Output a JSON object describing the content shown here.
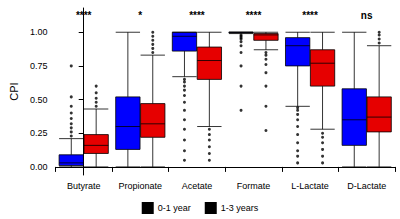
{
  "chart_data": {
    "type": "boxplot",
    "y_label": "CPI",
    "categories": [
      "Butyrate",
      "Propionate",
      "Acetate",
      "Formate",
      "L-Lactate",
      "D-Lactate"
    ],
    "annotations": [
      "****",
      "*",
      "****",
      "****",
      "****",
      "ns"
    ],
    "ylim": [
      -0.06,
      1.18
    ],
    "yticks": [
      {
        "value": 0,
        "label": "0.00"
      },
      {
        "value": 0.25,
        "label": "0.25"
      },
      {
        "value": 0.5,
        "label": "0.50"
      },
      {
        "value": 0.75,
        "label": "0.75"
      },
      {
        "value": 1,
        "label": "1.00"
      }
    ],
    "grid": false,
    "legend": "bottom",
    "series": [
      {
        "name": "0-1 year",
        "color": "#0000ff",
        "boxes": [
          [
            0,
            0.01,
            0.03,
            0.09,
            0.21
          ],
          [
            0,
            0.13,
            0.3,
            0.52,
            1.0
          ],
          [
            0.67,
            0.86,
            0.97,
            1.0,
            1.0
          ],
          [
            0.99,
            0.995,
            1.0,
            1.0,
            1.0
          ],
          [
            0.45,
            0.75,
            0.9,
            0.96,
            1.0
          ],
          [
            0,
            0.16,
            0.35,
            0.58,
            1.0
          ]
        ],
        "outliers": [
          [
            0.23,
            0.26,
            0.29,
            0.32,
            0.36,
            0.4,
            0.45,
            0.52,
            0.75
          ],
          [],
          [
            0.05,
            0.12,
            0.2,
            0.28,
            0.35,
            0.42,
            0.48,
            0.53,
            0.57,
            0.6,
            0.63,
            0.65
          ],
          [
            0.42,
            0.6,
            0.75,
            0.85,
            0.9,
            0.93,
            0.95,
            0.96,
            0.97,
            0.98
          ],
          [
            0.03,
            0.08,
            0.12,
            0.18,
            0.24,
            0.3,
            0.35,
            0.39,
            0.42,
            0.44
          ],
          []
        ]
      },
      {
        "name": "1-3 years",
        "color": "#e60000",
        "boxes": [
          [
            0,
            0.1,
            0.16,
            0.24,
            0.43
          ],
          [
            0,
            0.22,
            0.32,
            0.47,
            0.83
          ],
          [
            0.3,
            0.65,
            0.79,
            0.89,
            1.0
          ],
          [
            0.87,
            0.94,
            0.98,
            0.99,
            1.0
          ],
          [
            0.28,
            0.6,
            0.77,
            0.87,
            1.0
          ],
          [
            0,
            0.26,
            0.37,
            0.52,
            0.9
          ]
        ],
        "outliers": [
          [
            0.45,
            0.48,
            0.51,
            0.55,
            0.6
          ],
          [
            0.85,
            0.88,
            0.91,
            0.94,
            0.97,
            1.0
          ],
          [
            0.05,
            0.1,
            0.15,
            0.2,
            0.24,
            0.28
          ],
          [
            0.27,
            0.45,
            0.6,
            0.7,
            0.76,
            0.8,
            0.83,
            0.85
          ],
          [
            0.03,
            0.08,
            0.13,
            0.18,
            0.22,
            0.25
          ],
          [
            0.92,
            0.95,
            0.98,
            1.0
          ]
        ]
      }
    ]
  }
}
